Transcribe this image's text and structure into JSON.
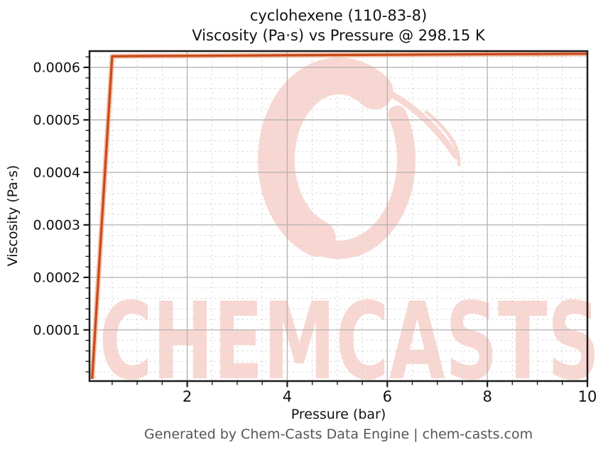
{
  "page": {
    "title_line1": "cyclohexene (110-83-8)",
    "title_line2": "Viscosity (Pa·s) vs Pressure @ 298.15 K",
    "footer": "Generated by Chem-Casts Data Engine | chem-casts.com",
    "watermark_text": "CHEMCASTS"
  },
  "chart_data": {
    "type": "line",
    "title": "cyclohexene (110-83-8)",
    "subtitle": "Viscosity (Pa·s) vs Pressure @ 298.15 K",
    "xlabel": "Pressure (bar)",
    "ylabel": "Viscosity (Pa·s)",
    "xlim": [
      0.047,
      10
    ],
    "ylim": [
      2.5e-06,
      0.000631
    ],
    "x_major_ticks": [
      2,
      4,
      6,
      8,
      10
    ],
    "x_major_tick_labels": [
      "2",
      "4",
      "6",
      "8",
      "10"
    ],
    "x_minor_step": 0.5,
    "y_major_ticks": [
      0.0001,
      0.0002,
      0.0003,
      0.0004,
      0.0005,
      0.0006
    ],
    "y_major_tick_labels": [
      "0.0001",
      "0.0002",
      "0.0003",
      "0.0004",
      "0.0005",
      "0.0006"
    ],
    "y_minor_step": 2e-05,
    "grid": {
      "major": "solid",
      "minor": "dashed",
      "legend": false
    },
    "series": [
      {
        "name": "viscosity",
        "x": [
          0.1,
          0.5,
          1,
          2,
          3,
          4,
          5,
          6,
          7,
          8,
          9,
          10
        ],
        "y": [
          6.6e-06,
          0.000621,
          0.0006215,
          0.000622,
          0.0006225,
          0.000623,
          0.0006235,
          0.000624,
          0.0006245,
          0.000625,
          0.0006255,
          0.000626
        ]
      }
    ],
    "colors": {
      "line": "#c8491a",
      "line_halo": "#eda17b",
      "grid_major": "#b2b2b2",
      "grid_minor": "#d6d6d6",
      "spine": "#1c1c1c",
      "tick_label": "#111111",
      "footer_text": "#555555",
      "watermark": "#f8d7d2"
    }
  }
}
